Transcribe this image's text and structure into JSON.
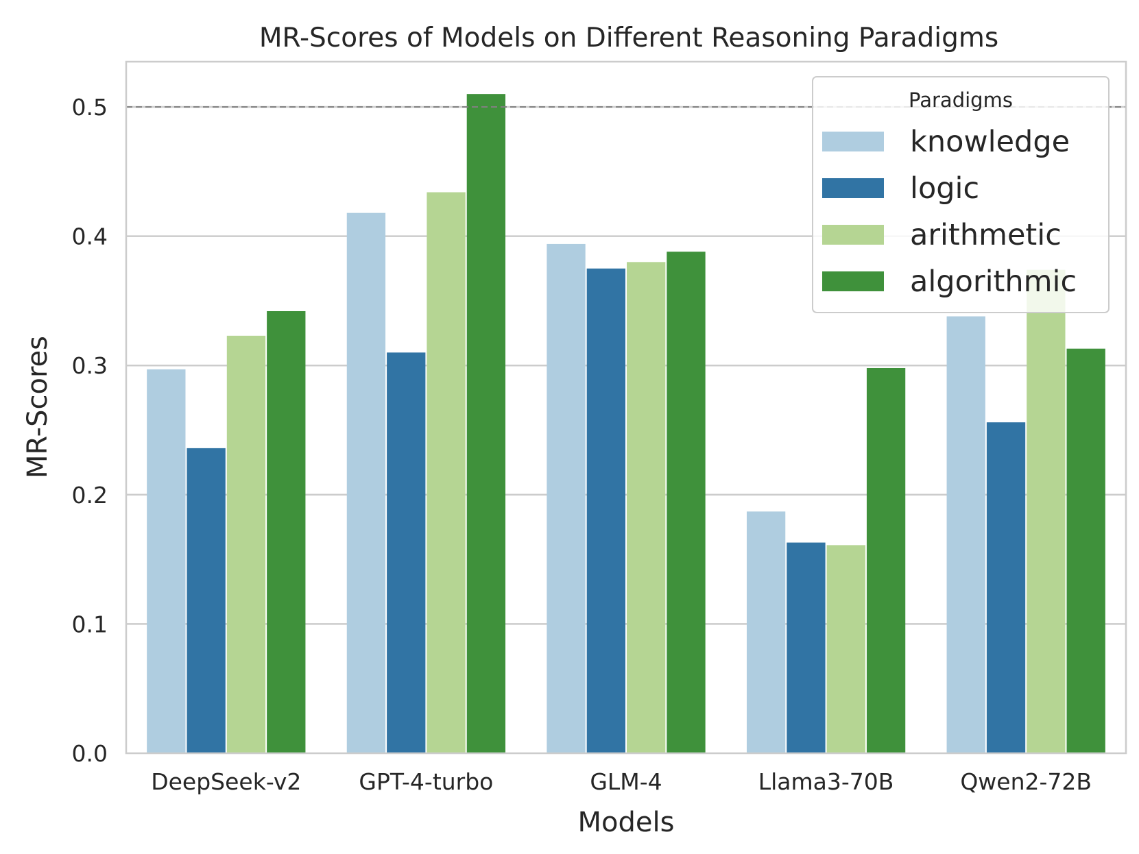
{
  "chart_data": {
    "type": "bar",
    "title": "MR-Scores of Models on Different Reasoning Paradigms",
    "xlabel": "Models",
    "ylabel": "MR-Scores",
    "ylim": [
      0,
      0.535
    ],
    "yticks": [
      0.0,
      0.1,
      0.2,
      0.3,
      0.4,
      0.5
    ],
    "ytick_labels": [
      "0.0",
      "0.1",
      "0.2",
      "0.3",
      "0.4",
      "0.5"
    ],
    "grid": true,
    "reference_line": 0.5,
    "legend": {
      "title": "Paradigms",
      "position": "top-right"
    },
    "categories": [
      "DeepSeek-v2",
      "GPT-4-turbo",
      "GLM-4",
      "Llama3-70B",
      "Qwen2-72B"
    ],
    "series": [
      {
        "name": "knowledge",
        "color": "#afcde0",
        "values": [
          0.297,
          0.418,
          0.394,
          0.187,
          0.338
        ]
      },
      {
        "name": "logic",
        "color": "#3174a4",
        "values": [
          0.236,
          0.31,
          0.375,
          0.163,
          0.256
        ]
      },
      {
        "name": "arithmetic",
        "color": "#b5d593",
        "values": [
          0.323,
          0.434,
          0.38,
          0.161,
          0.374
        ]
      },
      {
        "name": "algorithmic",
        "color": "#3f913b",
        "values": [
          0.342,
          0.51,
          0.388,
          0.298,
          0.313
        ]
      }
    ]
  }
}
